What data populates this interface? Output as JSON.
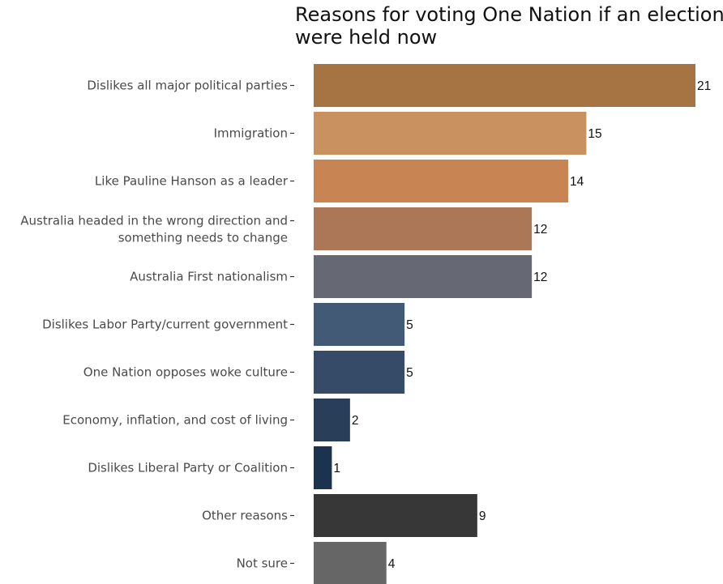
{
  "chart_data": {
    "type": "bar",
    "orientation": "horizontal",
    "title": [
      "Reasons for voting One Nation if an election",
      "were held now"
    ],
    "xlabel": "",
    "ylabel": "",
    "xlim": [
      0,
      21
    ],
    "grid": false,
    "legend": "none",
    "categories": [
      [
        "Dislikes all major political parties"
      ],
      [
        "Immigration"
      ],
      [
        "Like Pauline Hanson as a leader"
      ],
      [
        "Australia headed in the wrong direction and",
        "something needs to change"
      ],
      [
        "Australia First nationalism"
      ],
      [
        "Dislikes Labor Party/current government"
      ],
      [
        "One Nation opposes woke culture"
      ],
      [
        "Economy, inflation, and cost of living"
      ],
      [
        "Dislikes Liberal Party or Coalition"
      ],
      [
        "Other reasons"
      ],
      [
        "Not sure"
      ]
    ],
    "values": [
      21,
      15,
      14,
      12,
      12,
      5,
      5,
      2,
      1,
      9,
      4
    ],
    "value_labels": [
      "21",
      "15",
      "14",
      "12",
      "12",
      "5",
      "5",
      "2",
      "1",
      "9",
      "4"
    ],
    "colors": [
      "#A67442",
      "#C99160",
      "#C88452",
      "#AB7756",
      "#666973",
      "#425A75",
      "#354B67",
      "#283E59",
      "#1C3350",
      "#373737",
      "#666666"
    ]
  }
}
